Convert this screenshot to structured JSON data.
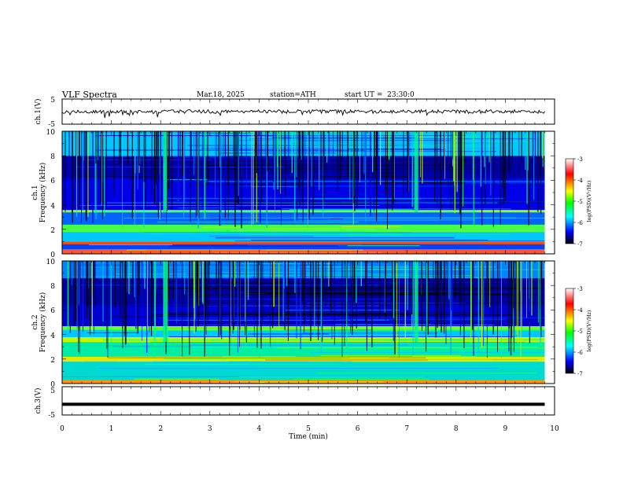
{
  "header": {
    "title": "VLF Spectra",
    "date": "Mar.18, 2025",
    "station": "station=ATH",
    "start": "start UT =  23:30:0"
  },
  "colorbar": {
    "label": "log(PSD)(V²/Hz)",
    "ticks": [
      "-3",
      "-4",
      "-5",
      "-6",
      "-7"
    ],
    "colors": [
      "#ffffff",
      "#ff0000",
      "#ffff00",
      "#00ff00",
      "#00ffff",
      "#0000ff",
      "#000000"
    ]
  },
  "chart_data": [
    {
      "type": "line",
      "name": "ch.1 time series",
      "ylabel": "ch.1(V)",
      "yticks": [
        "5",
        "-5"
      ],
      "ylim": [
        -5,
        5
      ],
      "xlim": [
        0,
        10
      ],
      "description_level_volts": 0,
      "noise_peak_to_peak_volts": 1.5
    },
    {
      "type": "heatmap",
      "name": "ch.1 spectrogram",
      "ylabel": "ch.1",
      "ylabel2": "Frequency (kHz)",
      "yticks": [
        "10",
        "8",
        "6",
        "4",
        "2",
        "0"
      ],
      "ylim_khz": [
        0,
        10
      ],
      "xlim_min": [
        0,
        10
      ],
      "data_end_min": 9.8,
      "clim_log_psd": [
        -7,
        -3
      ],
      "bands": [
        {
          "from_khz": 0.0,
          "to_khz": 0.4,
          "log_psd": -3.4
        },
        {
          "from_khz": 0.4,
          "to_khz": 0.8,
          "log_psd": -6.0
        },
        {
          "from_khz": 0.8,
          "to_khz": 1.0,
          "log_psd": -3.6
        },
        {
          "from_khz": 1.0,
          "to_khz": 1.8,
          "log_psd": -5.6
        },
        {
          "from_khz": 1.8,
          "to_khz": 2.4,
          "log_psd": -4.8
        },
        {
          "from_khz": 2.4,
          "to_khz": 3.4,
          "log_psd": -5.9
        },
        {
          "from_khz": 3.4,
          "to_khz": 3.6,
          "log_psd": -4.6
        },
        {
          "from_khz": 3.6,
          "to_khz": 6.2,
          "log_psd": -6.3
        },
        {
          "from_khz": 6.2,
          "to_khz": 8.0,
          "log_psd": -6.6
        },
        {
          "from_khz": 8.0,
          "to_khz": 10.0,
          "log_psd": -5.6
        }
      ]
    },
    {
      "type": "heatmap",
      "name": "ch.2 spectrogram",
      "ylabel": "ch.2",
      "ylabel2": "Frequency (kHz)",
      "yticks": [
        "10",
        "8",
        "6",
        "4",
        "2",
        "0"
      ],
      "ylim_khz": [
        0,
        10
      ],
      "xlim_min": [
        0,
        10
      ],
      "data_end_min": 9.8,
      "clim_log_psd": [
        -7,
        -3
      ],
      "bands": [
        {
          "from_khz": 0.0,
          "to_khz": 0.3,
          "log_psd": -3.8
        },
        {
          "from_khz": 0.3,
          "to_khz": 1.8,
          "log_psd": -5.4
        },
        {
          "from_khz": 1.8,
          "to_khz": 2.2,
          "log_psd": -4.2
        },
        {
          "from_khz": 2.2,
          "to_khz": 3.4,
          "log_psd": -5.2
        },
        {
          "from_khz": 3.4,
          "to_khz": 3.8,
          "log_psd": -4.4
        },
        {
          "from_khz": 3.8,
          "to_khz": 4.4,
          "log_psd": -5.6
        },
        {
          "from_khz": 4.4,
          "to_khz": 4.7,
          "log_psd": -4.7
        },
        {
          "from_khz": 4.7,
          "to_khz": 6.4,
          "log_psd": -6.4
        },
        {
          "from_khz": 6.4,
          "to_khz": 8.6,
          "log_psd": -6.6
        },
        {
          "from_khz": 8.6,
          "to_khz": 10.0,
          "log_psd": -5.8
        }
      ]
    },
    {
      "type": "line",
      "name": "ch.3 time series",
      "ylabel": "ch.3(V)",
      "yticks": [
        "5",
        "-5"
      ],
      "ylim": [
        -5,
        5
      ],
      "xlim": [
        0,
        10
      ],
      "level_volts": -1.2,
      "xlabel": "Time (min)",
      "xticks": [
        "0",
        "1",
        "2",
        "3",
        "4",
        "5",
        "6",
        "7",
        "8",
        "9",
        "10"
      ]
    }
  ]
}
